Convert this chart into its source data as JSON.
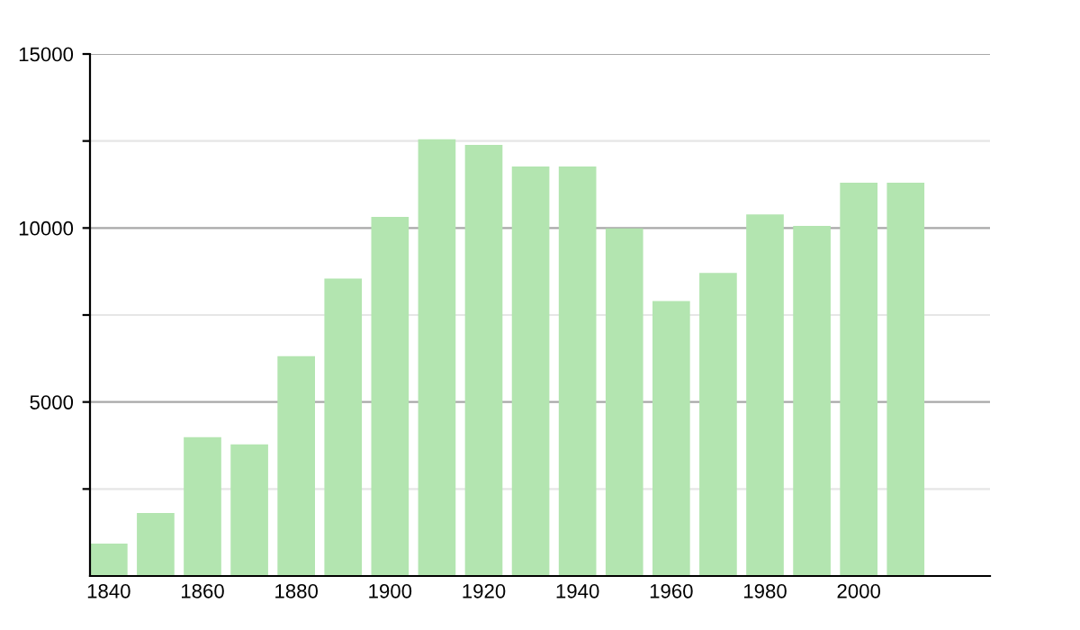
{
  "chart_data": {
    "type": "bar",
    "x": [
      1840,
      1850,
      1860,
      1870,
      1880,
      1890,
      1900,
      1910,
      1920,
      1930,
      1940,
      1950,
      1960,
      1970,
      1980,
      1990,
      2000,
      2010
    ],
    "values": [
      930,
      1810,
      3990,
      3780,
      6320,
      8550,
      10320,
      12550,
      12390,
      11770,
      11770,
      9990,
      7900,
      8710,
      10390,
      10060,
      11300,
      11300
    ],
    "color": "#b3e5b0",
    "xlim": [
      1836,
      2028
    ],
    "xticks": [
      1840,
      1860,
      1880,
      1900,
      1920,
      1940,
      1960,
      1980,
      2000
    ],
    "ylim": [
      0,
      15000
    ],
    "yticks": [
      {
        "value": 2500,
        "label": null
      },
      5000,
      {
        "value": 7500,
        "label": null
      },
      10000,
      {
        "value": 12500,
        "label": null
      },
      15000
    ],
    "grid": "y",
    "legend": false
  }
}
